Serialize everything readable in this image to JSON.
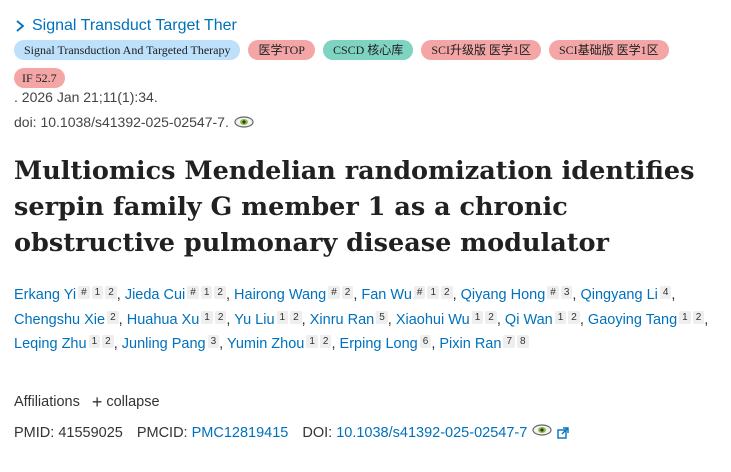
{
  "journal": {
    "name": "Signal Transduct Target Ther"
  },
  "tags": [
    {
      "label": "Signal Transduction And Targeted Therapy",
      "color": "#bde0fb"
    },
    {
      "label": "医学TOP",
      "color": "#f4a6a6"
    },
    {
      "label": "CSCD 核心库",
      "color": "#7fd4c1"
    },
    {
      "label": "SCI升级版 医学1区",
      "color": "#f4a6a6"
    },
    {
      "label": "SCI基础版 医学1区",
      "color": "#f4a6a6"
    },
    {
      "label": "IF 52.7",
      "color": "#f4a6a6"
    }
  ],
  "citation": {
    "pubdate": ". 2026 Jan 21;11(1):34.",
    "doi": "doi: 10.1038/s41392-025-02547-7."
  },
  "article": {
    "title": "Multiomics Mendelian randomization identifies serpin family G member 1 as a chronic obstructive pulmonary disease modulator"
  },
  "authors": [
    {
      "name": "Erkang Yi",
      "sups": [
        "#",
        "1",
        "2"
      ]
    },
    {
      "name": "Jieda Cui",
      "sups": [
        "#",
        "1",
        "2"
      ]
    },
    {
      "name": "Hairong Wang",
      "sups": [
        "#",
        "2"
      ]
    },
    {
      "name": "Fan Wu",
      "sups": [
        "#",
        "1",
        "2"
      ]
    },
    {
      "name": "Qiyang Hong",
      "sups": [
        "#",
        "3"
      ]
    },
    {
      "name": "Qingyang Li",
      "sups": [
        "4"
      ]
    },
    {
      "name": "Chengshu Xie",
      "sups": [
        "2"
      ]
    },
    {
      "name": "Huahua Xu",
      "sups": [
        "1",
        "2"
      ]
    },
    {
      "name": "Yu Liu",
      "sups": [
        "1",
        "2"
      ]
    },
    {
      "name": "Xinru Ran",
      "sups": [
        "5"
      ]
    },
    {
      "name": "Xiaohui Wu",
      "sups": [
        "1",
        "2"
      ]
    },
    {
      "name": "Qi Wan",
      "sups": [
        "1",
        "2"
      ]
    },
    {
      "name": "Gaoying Tang",
      "sups": [
        "1",
        "2"
      ]
    },
    {
      "name": "Leqing Zhu",
      "sups": [
        "1",
        "2"
      ]
    },
    {
      "name": "Junling Pang",
      "sups": [
        "3"
      ]
    },
    {
      "name": "Yumin Zhou",
      "sups": [
        "1",
        "2"
      ]
    },
    {
      "name": "Erping Long",
      "sups": [
        "6"
      ]
    },
    {
      "name": "Pixin Ran",
      "sups": [
        "7",
        "8"
      ]
    }
  ],
  "affiliations": {
    "label": "Affiliations",
    "toggle": "collapse"
  },
  "ids": {
    "pmid_label": "PMID:",
    "pmid": "41559025",
    "pmcid_label": "PMCID:",
    "pmcid": "PMC12819415",
    "doi_label": "DOI:",
    "doi": "10.1038/s41392-025-02547-7"
  }
}
